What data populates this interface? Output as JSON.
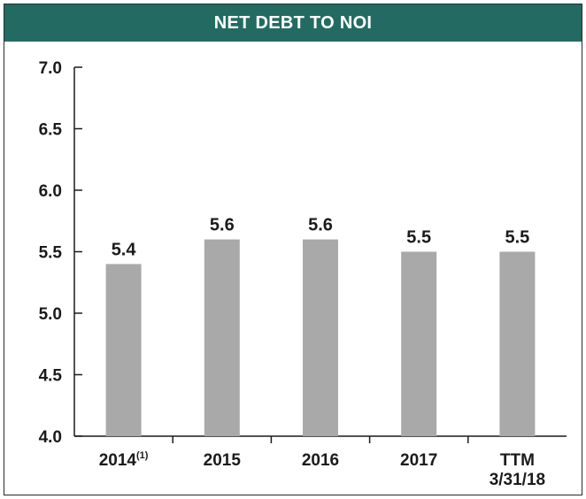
{
  "chart_data": {
    "type": "bar",
    "title": "NET DEBT TO NOI",
    "categories": [
      {
        "lines": [
          "2014"
        ],
        "superscript": "(1)"
      },
      {
        "lines": [
          "2015"
        ],
        "superscript": ""
      },
      {
        "lines": [
          "2016"
        ],
        "superscript": ""
      },
      {
        "lines": [
          "2017"
        ],
        "superscript": ""
      },
      {
        "lines": [
          "TTM",
          "3/31/18"
        ],
        "superscript": ""
      }
    ],
    "values": [
      5.4,
      5.6,
      5.6,
      5.5,
      5.5
    ],
    "value_labels": [
      "5.4",
      "5.6",
      "5.6",
      "5.5",
      "5.5"
    ],
    "yticks": [
      "4.0",
      "4.5",
      "5.0",
      "5.5",
      "6.0",
      "6.5",
      "7.0"
    ],
    "ylim": [
      4.0,
      7.0
    ],
    "xlabel": "",
    "ylabel": "",
    "grid": false,
    "bar_color": "#a9a9a9",
    "header_color": "#236b62"
  }
}
